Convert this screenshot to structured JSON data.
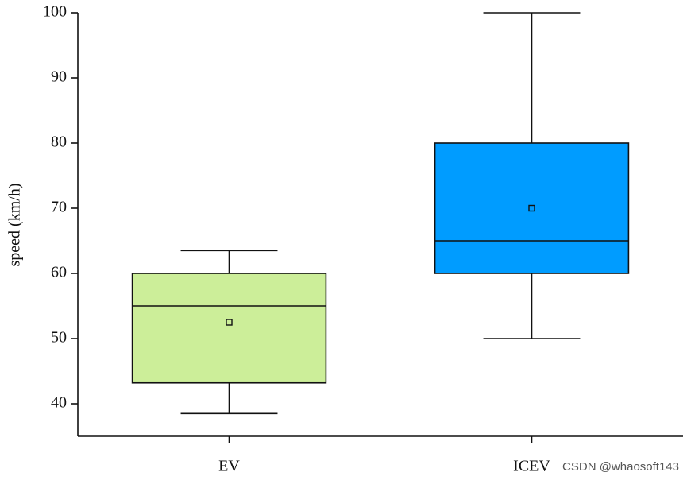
{
  "chart_data": {
    "type": "box",
    "y_label": "speed (km/h)",
    "categories": [
      "EV",
      "ICEV"
    ],
    "whisker_low": [
      38.5,
      50
    ],
    "q1": [
      43.2,
      60
    ],
    "median": [
      55,
      65
    ],
    "q3": [
      60,
      80
    ],
    "whisker_high": [
      63.5,
      100
    ],
    "mean": [
      52.5,
      70
    ],
    "colors": [
      "#ccee99",
      "#009cff"
    ],
    "ylim": [
      35,
      100
    ],
    "yticks": [
      40,
      50,
      60,
      70,
      80,
      90,
      100
    ],
    "watermark": "CSDN @whaosoft143"
  }
}
